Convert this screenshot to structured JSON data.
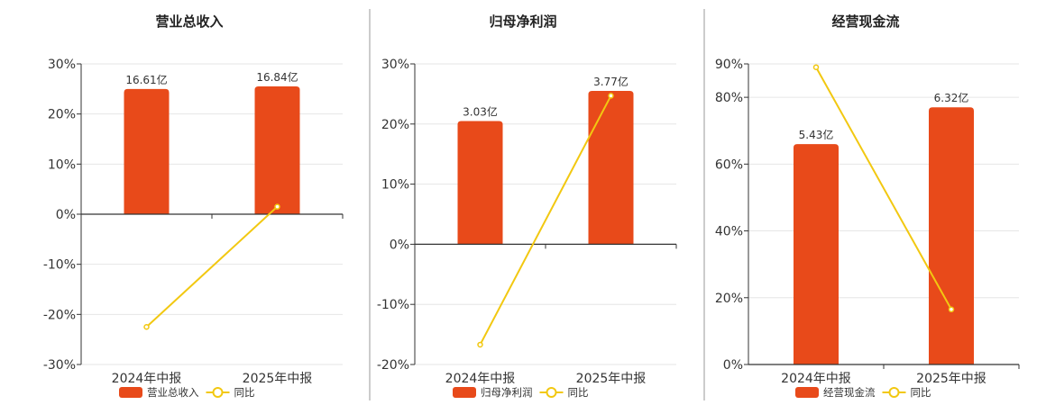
{
  "colors": {
    "bar": "#e84a1a",
    "line": "#f2c811",
    "axis": "#333333",
    "grid": "#e6e6e6",
    "divider": "#999999",
    "text": "#333333"
  },
  "chart_data": [
    {
      "type": "bar",
      "title": "营业总收入",
      "categories": [
        "2024年中报",
        "2025年中报"
      ],
      "bar_values": [
        25,
        25.5
      ],
      "bar_labels": [
        "16.61亿",
        "16.84亿"
      ],
      "bar_series_name": "营业总收入",
      "line_values": [
        -22.5,
        1.5
      ],
      "line_series_name": "同比",
      "ylim": [
        -30,
        30
      ],
      "yticks": [
        -30,
        -20,
        -10,
        0,
        10,
        20,
        30
      ],
      "ytick_labels": [
        "-30%",
        "-20%",
        "-10%",
        "0%",
        "10%",
        "20%",
        "30%"
      ],
      "legend": "bottom-center"
    },
    {
      "type": "bar",
      "title": "归母净利润",
      "categories": [
        "2024年中报",
        "2025年中报"
      ],
      "bar_values": [
        20.5,
        25.5
      ],
      "bar_labels": [
        "3.03亿",
        "3.77亿"
      ],
      "bar_series_name": "归母净利润",
      "line_values": [
        -16.7,
        24.7
      ],
      "line_series_name": "同比",
      "ylim": [
        -20,
        30
      ],
      "yticks": [
        -20,
        -10,
        0,
        10,
        20,
        30
      ],
      "ytick_labels": [
        "-20%",
        "-10%",
        "0%",
        "10%",
        "20%",
        "30%"
      ],
      "legend": "bottom-center"
    },
    {
      "type": "bar",
      "title": "经营现金流",
      "categories": [
        "2024年中报",
        "2025年中报"
      ],
      "bar_values": [
        66,
        77
      ],
      "bar_labels": [
        "5.43亿",
        "6.32亿"
      ],
      "bar_series_name": "经营现金流",
      "line_values": [
        89,
        16.5
      ],
      "line_series_name": "同比",
      "ylim": [
        0,
        90
      ],
      "yticks": [
        0,
        20,
        40,
        60,
        80,
        90
      ],
      "ytick_labels": [
        "0%",
        "20%",
        "40%",
        "60%",
        "80%",
        "90%"
      ],
      "legend": "bottom-center"
    }
  ]
}
